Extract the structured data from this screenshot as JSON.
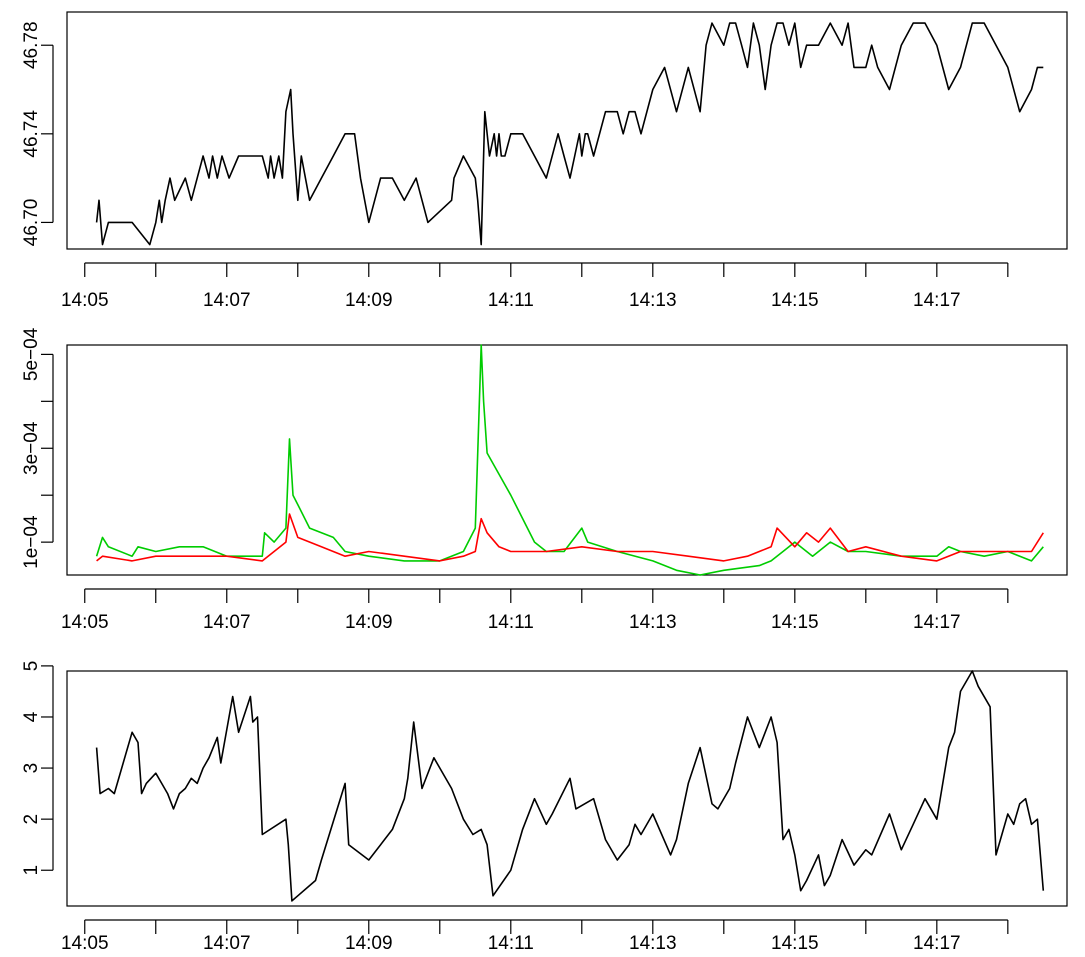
{
  "chart_data": [
    {
      "type": "line",
      "title": "",
      "xlabel": "",
      "ylabel": "",
      "x_tick_labels": [
        "14:05",
        "14:07",
        "14:09",
        "14:11",
        "14:13",
        "14:15",
        "14:17"
      ],
      "x_ticks_minutes": [
        5,
        6,
        7,
        8,
        9,
        10,
        11,
        12,
        13,
        14,
        15,
        16,
        17,
        18
      ],
      "xlim": [
        "14:04:45",
        "14:18:50"
      ],
      "ylim": [
        46.688,
        46.795
      ],
      "y_ticks": [
        46.7,
        46.74,
        46.78
      ],
      "y_tick_labels": [
        "46.70",
        "46.74",
        "46.78"
      ],
      "series": [
        {
          "color": "#000000",
          "x": [
            "14:05:10",
            "14:05:12",
            "14:05:15",
            "14:05:20",
            "14:05:40",
            "14:05:55",
            "14:06:00",
            "14:06:03",
            "14:06:05",
            "14:06:08",
            "14:06:12",
            "14:06:16",
            "14:06:25",
            "14:06:30",
            "14:06:35",
            "14:06:40",
            "14:06:45",
            "14:06:48",
            "14:06:52",
            "14:06:56",
            "14:07:02",
            "14:07:10",
            "14:07:18",
            "14:07:30",
            "14:07:35",
            "14:07:37",
            "14:07:40",
            "14:07:44",
            "14:07:47",
            "14:07:50",
            "14:07:54",
            "14:07:56",
            "14:08:00",
            "14:08:03",
            "14:08:10",
            "14:08:20",
            "14:08:30",
            "14:08:40",
            "14:08:48",
            "14:08:53",
            "14:09:00",
            "14:09:10",
            "14:09:20",
            "14:09:30",
            "14:09:40",
            "14:09:50",
            "14:10:10",
            "14:10:12",
            "14:10:20",
            "14:10:30",
            "14:10:32",
            "14:10:35",
            "14:10:38",
            "14:10:42",
            "14:10:46",
            "14:10:48",
            "14:10:50",
            "14:10:52",
            "14:10:55",
            "14:11:00",
            "14:11:10",
            "14:11:20",
            "14:11:30",
            "14:11:40",
            "14:11:45",
            "14:11:50",
            "14:11:54",
            "14:11:58",
            "14:12:00",
            "14:12:03",
            "14:12:05",
            "14:12:10",
            "14:12:20",
            "14:12:30",
            "14:12:35",
            "14:12:40",
            "14:12:45",
            "14:12:50",
            "14:13:00",
            "14:13:10",
            "14:13:20",
            "14:13:30",
            "14:13:40",
            "14:13:45",
            "14:13:50",
            "14:14:00",
            "14:14:05",
            "14:14:10",
            "14:14:15",
            "14:14:20",
            "14:14:25",
            "14:14:30",
            "14:14:35",
            "14:14:40",
            "14:14:45",
            "14:14:50",
            "14:14:55",
            "14:15:00",
            "14:15:05",
            "14:15:10",
            "14:15:20",
            "14:15:30",
            "14:15:40",
            "14:15:45",
            "14:15:50",
            "14:16:00",
            "14:16:05",
            "14:16:10",
            "14:16:20",
            "14:16:30",
            "14:16:40",
            "14:16:50",
            "14:17:00",
            "14:17:10",
            "14:17:20",
            "14:17:30",
            "14:17:40",
            "14:17:50",
            "14:18:00",
            "14:18:10",
            "14:18:20",
            "14:18:25",
            "14:18:30"
          ],
          "y": [
            46.7,
            46.71,
            46.69,
            46.7,
            46.7,
            46.69,
            46.7,
            46.71,
            46.7,
            46.71,
            46.72,
            46.71,
            46.72,
            46.71,
            46.72,
            46.73,
            46.72,
            46.73,
            46.72,
            46.73,
            46.72,
            46.73,
            46.73,
            46.73,
            46.72,
            46.73,
            46.72,
            46.73,
            46.72,
            46.75,
            46.76,
            46.74,
            46.71,
            46.73,
            46.71,
            46.72,
            46.73,
            46.74,
            46.74,
            46.72,
            46.7,
            46.72,
            46.72,
            46.71,
            46.72,
            46.7,
            46.71,
            46.72,
            46.73,
            46.72,
            46.71,
            46.69,
            46.75,
            46.73,
            46.74,
            46.73,
            46.74,
            46.73,
            46.73,
            46.74,
            46.74,
            46.73,
            46.72,
            46.74,
            46.73,
            46.72,
            46.73,
            46.74,
            46.73,
            46.74,
            46.74,
            46.73,
            46.75,
            46.75,
            46.74,
            46.75,
            46.75,
            46.74,
            46.76,
            46.77,
            46.75,
            46.77,
            46.75,
            46.78,
            46.79,
            46.78,
            46.79,
            46.79,
            46.78,
            46.77,
            46.79,
            46.78,
            46.76,
            46.78,
            46.79,
            46.79,
            46.78,
            46.79,
            46.77,
            46.78,
            46.78,
            46.79,
            46.78,
            46.79,
            46.77,
            46.77,
            46.78,
            46.77,
            46.76,
            46.78,
            46.79,
            46.79,
            46.78,
            46.76,
            46.77,
            46.79,
            46.79,
            46.78,
            46.77,
            46.75,
            46.76,
            46.77,
            46.77
          ]
        }
      ]
    },
    {
      "type": "line",
      "title": "",
      "xlabel": "",
      "ylabel": "",
      "x_tick_labels": [
        "14:05",
        "14:07",
        "14:09",
        "14:11",
        "14:13",
        "14:15",
        "14:17"
      ],
      "x_ticks_minutes": [
        5,
        6,
        7,
        8,
        9,
        10,
        11,
        12,
        13,
        14,
        15,
        16,
        17,
        18
      ],
      "xlim": [
        "14:04:45",
        "14:18:50"
      ],
      "ylim": [
        3e-05,
        0.00052
      ],
      "y_ticks": [
        0.0001,
        0.0002,
        0.0003,
        0.0004,
        0.0005
      ],
      "y_tick_labels": [
        "1e−04",
        "",
        "3e−04",
        "",
        "5e−04"
      ],
      "series": [
        {
          "color": "#00cc00",
          "x": [
            "14:05:10",
            "14:05:15",
            "14:05:20",
            "14:05:40",
            "14:05:45",
            "14:06:00",
            "14:06:20",
            "14:06:40",
            "14:07:00",
            "14:07:30",
            "14:07:32",
            "14:07:40",
            "14:07:50",
            "14:07:53",
            "14:07:56",
            "14:08:00",
            "14:08:10",
            "14:08:30",
            "14:08:40",
            "14:09:00",
            "14:09:30",
            "14:10:00",
            "14:10:20",
            "14:10:30",
            "14:10:35",
            "14:10:37",
            "14:10:40",
            "14:11:00",
            "14:11:20",
            "14:11:30",
            "14:11:45",
            "14:12:00",
            "14:12:05",
            "14:12:30",
            "14:13:00",
            "14:13:20",
            "14:13:40",
            "14:14:00",
            "14:14:30",
            "14:14:40",
            "14:14:50",
            "14:15:00",
            "14:15:15",
            "14:15:30",
            "14:15:45",
            "14:16:00",
            "14:16:30",
            "14:17:00",
            "14:17:10",
            "14:17:20",
            "14:17:40",
            "14:18:00",
            "14:18:20",
            "14:18:30"
          ],
          "y": [
            7e-05,
            0.00011,
            9e-05,
            7e-05,
            9e-05,
            8e-05,
            9e-05,
            9e-05,
            7e-05,
            7e-05,
            0.00012,
            0.0001,
            0.00013,
            0.00032,
            0.0002,
            0.00018,
            0.00013,
            0.00011,
            8e-05,
            7e-05,
            6e-05,
            6e-05,
            8e-05,
            0.00013,
            0.00052,
            0.0004,
            0.00029,
            0.0002,
            0.0001,
            8e-05,
            8e-05,
            0.00013,
            0.0001,
            8e-05,
            6e-05,
            4e-05,
            3e-05,
            4e-05,
            5e-05,
            6e-05,
            8e-05,
            0.0001,
            7e-05,
            0.0001,
            8e-05,
            8e-05,
            7e-05,
            7e-05,
            9e-05,
            8e-05,
            7e-05,
            8e-05,
            6e-05,
            9e-05
          ]
        },
        {
          "color": "#ff0000",
          "x": [
            "14:05:10",
            "14:05:15",
            "14:05:40",
            "14:06:00",
            "14:06:30",
            "14:07:00",
            "14:07:30",
            "14:07:50",
            "14:07:53",
            "14:08:00",
            "14:08:20",
            "14:08:40",
            "14:09:00",
            "14:09:30",
            "14:10:00",
            "14:10:20",
            "14:10:30",
            "14:10:35",
            "14:10:40",
            "14:10:50",
            "14:11:00",
            "14:11:30",
            "14:12:00",
            "14:12:30",
            "14:13:00",
            "14:13:30",
            "14:14:00",
            "14:14:20",
            "14:14:40",
            "14:14:45",
            "14:15:00",
            "14:15:10",
            "14:15:20",
            "14:15:30",
            "14:15:45",
            "14:16:00",
            "14:16:30",
            "14:17:00",
            "14:17:20",
            "14:17:40",
            "14:18:00",
            "14:18:20",
            "14:18:30"
          ],
          "y": [
            6e-05,
            7e-05,
            6e-05,
            7e-05,
            7e-05,
            7e-05,
            6e-05,
            0.0001,
            0.00016,
            0.00011,
            9e-05,
            7e-05,
            8e-05,
            7e-05,
            6e-05,
            7e-05,
            8e-05,
            0.00015,
            0.00012,
            9e-05,
            8e-05,
            8e-05,
            9e-05,
            8e-05,
            8e-05,
            7e-05,
            6e-05,
            7e-05,
            9e-05,
            0.00013,
            9e-05,
            0.00012,
            0.0001,
            0.00013,
            8e-05,
            9e-05,
            7e-05,
            6e-05,
            8e-05,
            8e-05,
            8e-05,
            8e-05,
            0.00012
          ]
        }
      ]
    },
    {
      "type": "line",
      "title": "",
      "xlabel": "",
      "ylabel": "",
      "x_tick_labels": [
        "14:05",
        "14:07",
        "14:09",
        "14:11",
        "14:13",
        "14:15",
        "14:17"
      ],
      "x_ticks_minutes": [
        5,
        6,
        7,
        8,
        9,
        10,
        11,
        12,
        13,
        14,
        15,
        16,
        17,
        18
      ],
      "xlim": [
        "14:04:45",
        "14:18:50"
      ],
      "ylim": [
        0.3,
        4.9
      ],
      "y_ticks": [
        1,
        2,
        3,
        4,
        5
      ],
      "y_tick_labels": [
        "1",
        "2",
        "3",
        "4",
        "5"
      ],
      "series": [
        {
          "color": "#000000",
          "x": [
            "14:05:10",
            "14:05:13",
            "14:05:20",
            "14:05:25",
            "14:05:40",
            "14:05:45",
            "14:05:48",
            "14:05:52",
            "14:06:00",
            "14:06:05",
            "14:06:10",
            "14:06:15",
            "14:06:20",
            "14:06:25",
            "14:06:30",
            "14:06:35",
            "14:06:40",
            "14:06:45",
            "14:06:52",
            "14:06:55",
            "14:07:05",
            "14:07:10",
            "14:07:20",
            "14:07:22",
            "14:07:26",
            "14:07:30",
            "14:07:50",
            "14:07:52",
            "14:07:55",
            "14:08:00",
            "14:08:15",
            "14:08:20",
            "14:08:40",
            "14:08:43",
            "14:09:00",
            "14:09:20",
            "14:09:30",
            "14:09:33",
            "14:09:38",
            "14:09:45",
            "14:09:55",
            "14:10:10",
            "14:10:20",
            "14:10:28",
            "14:10:35",
            "14:10:40",
            "14:10:45",
            "14:11:00",
            "14:11:10",
            "14:11:20",
            "14:11:30",
            "14:11:35",
            "14:11:50",
            "14:11:55",
            "14:12:10",
            "14:12:20",
            "14:12:30",
            "14:12:40",
            "14:12:45",
            "14:12:50",
            "14:13:00",
            "14:13:15",
            "14:13:20",
            "14:13:30",
            "14:13:40",
            "14:13:50",
            "14:13:55",
            "14:14:05",
            "14:14:10",
            "14:14:20",
            "14:14:30",
            "14:14:40",
            "14:14:45",
            "14:14:50",
            "14:14:55",
            "14:15:00",
            "14:15:05",
            "14:15:10",
            "14:15:20",
            "14:15:25",
            "14:15:30",
            "14:15:40",
            "14:15:50",
            "14:16:00",
            "14:16:05",
            "14:16:20",
            "14:16:30",
            "14:16:40",
            "14:16:50",
            "14:17:00",
            "14:17:10",
            "14:17:15",
            "14:17:20",
            "14:17:30",
            "14:17:35",
            "14:17:45",
            "14:17:50",
            "14:17:55",
            "14:18:00",
            "14:18:05",
            "14:18:10",
            "14:18:15",
            "14:18:20",
            "14:18:25",
            "14:18:30"
          ],
          "y": [
            3.4,
            2.5,
            2.6,
            2.5,
            3.7,
            3.5,
            2.5,
            2.7,
            2.9,
            2.7,
            2.5,
            2.2,
            2.5,
            2.6,
            2.8,
            2.7,
            3.0,
            3.2,
            3.6,
            3.1,
            4.4,
            3.7,
            4.4,
            3.9,
            4.0,
            1.7,
            2.0,
            1.5,
            0.4,
            0.5,
            0.8,
            1.2,
            2.7,
            1.5,
            1.2,
            1.8,
            2.4,
            2.8,
            3.9,
            2.6,
            3.2,
            2.6,
            2.0,
            1.7,
            1.8,
            1.5,
            0.5,
            1.0,
            1.8,
            2.4,
            1.9,
            2.1,
            2.8,
            2.2,
            2.4,
            1.6,
            1.2,
            1.5,
            1.9,
            1.7,
            2.1,
            1.3,
            1.6,
            2.7,
            3.4,
            2.3,
            2.2,
            2.6,
            3.1,
            4.0,
            3.4,
            4.0,
            3.5,
            1.6,
            1.8,
            1.3,
            0.6,
            0.8,
            1.3,
            0.7,
            0.9,
            1.6,
            1.1,
            1.4,
            1.3,
            2.1,
            1.4,
            1.9,
            2.4,
            2.0,
            3.4,
            3.7,
            4.5,
            4.9,
            4.6,
            4.2,
            1.3,
            1.7,
            2.1,
            1.9,
            2.3,
            2.4,
            1.9,
            2.0,
            0.6
          ]
        }
      ]
    }
  ]
}
